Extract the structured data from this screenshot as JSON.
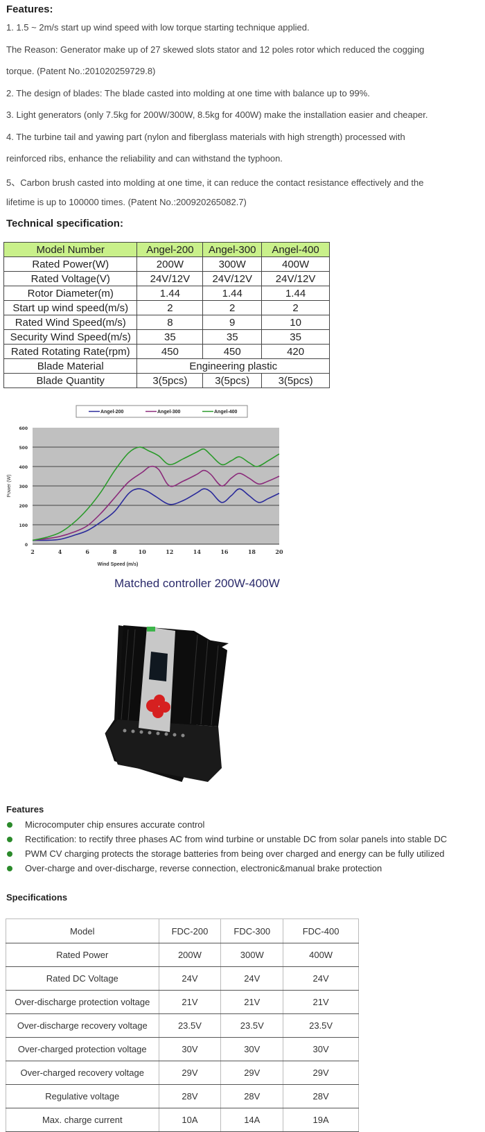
{
  "features": {
    "heading": "Features:",
    "lines": [
      "1. 1.5 ~ 2m/s start up wind speed with low torque starting technique applied.",
      "The Reason: Generator make up of 27 skewed slots stator and 12 poles rotor which reduced the cogging",
      "torque. (Patent No.:201020259729.8)",
      "2. The design of blades: The blade casted into molding at one time with balance up to 99%.",
      "3. Light generators (only 7.5kg for 200W/300W, 8.5kg for 400W) make the installation easier and cheaper.",
      "4.  The turbine tail and yawing part (nylon and fiberglass materials with high strength)      processed with",
      "reinforced ribs, enhance the reliability and can withstand the typhoon.",
      "5、Carbon brush casted into molding at one time, it can reduce the contact resistance effectively and the",
      "lifetime is up to 100000 times. (Patent No.:200920265082.7)"
    ]
  },
  "tech_spec": {
    "heading": "Technical specification:",
    "header": [
      "Model Number",
      "Angel-200",
      "Angel-300",
      "Angel-400"
    ],
    "rows": [
      [
        "Rated Power(W)",
        "200W",
        "300W",
        "400W"
      ],
      [
        "Rated Voltage(V)",
        "24V/12V",
        "24V/12V",
        "24V/12V"
      ],
      [
        "Rotor Diameter(m)",
        "1.44",
        "1.44",
        "1.44"
      ],
      [
        "Start up wind speed(m/s)",
        "2",
        "2",
        "2"
      ],
      [
        "Rated Wind Speed(m/s)",
        "8",
        "9",
        "10"
      ],
      [
        "Security Wind Speed(m/s)",
        "35",
        "35",
        "35"
      ],
      [
        "Rated Rotating Rate(rpm)",
        "450",
        "450",
        "420"
      ]
    ],
    "blade_material": {
      "label": "Blade Material",
      "value": "Engineering plastic"
    },
    "blade_quantity": [
      "Blade Quantity",
      "3(5pcs)",
      "3(5pcs)",
      "3(5pcs)"
    ],
    "header_color": "#c9f08a"
  },
  "chart_data": {
    "type": "line",
    "title": "",
    "xlabel": "Wind Speed (m/s)",
    "ylabel": "Power (W)",
    "xlim": [
      2,
      20
    ],
    "ylim": [
      0,
      600
    ],
    "xticks": [
      "2",
      "4",
      "6",
      "8",
      "10",
      "12",
      "14",
      "16",
      "18",
      "20"
    ],
    "yticks": [
      "0",
      "100",
      "200",
      "300",
      "400",
      "500",
      "600"
    ],
    "grid": true,
    "legend": "top",
    "plot_background": "#c0c0c0",
    "series": [
      {
        "name": "Angel-200",
        "color": "#2a2a9a",
        "x": [
          2,
          3,
          4,
          5,
          6,
          7,
          8,
          9,
          9.65,
          10.3,
          11,
          12,
          13,
          14,
          14.5,
          15,
          15.8,
          16.5,
          17.1,
          17.8,
          18.5,
          19.2,
          20
        ],
        "y": [
          20,
          20,
          25,
          45,
          70,
          115,
          170,
          260,
          285,
          275,
          245,
          205,
          225,
          265,
          285,
          270,
          215,
          250,
          285,
          250,
          215,
          235,
          262
        ]
      },
      {
        "name": "Angel-300",
        "color": "#8a2a7a",
        "x": [
          2,
          3,
          4,
          5,
          6,
          7,
          8,
          9,
          10,
          10.6,
          11.2,
          12,
          13,
          14,
          14.5,
          15,
          15.8,
          16.5,
          17.1,
          17.8,
          18.5,
          19.2,
          20
        ],
        "y": [
          20,
          28,
          40,
          62,
          95,
          160,
          240,
          320,
          370,
          400,
          385,
          300,
          325,
          360,
          380,
          360,
          300,
          340,
          365,
          340,
          310,
          325,
          350
        ]
      },
      {
        "name": "Angel-400",
        "color": "#2a9a2a",
        "x": [
          2,
          3,
          4,
          5,
          6,
          7,
          8,
          9,
          9.8,
          10.5,
          11.2,
          12,
          13,
          14,
          14.5,
          15,
          15.8,
          16.5,
          17.1,
          17.8,
          18.4,
          19.2,
          20
        ],
        "y": [
          20,
          35,
          60,
          110,
          180,
          270,
          380,
          470,
          500,
          480,
          455,
          410,
          440,
          475,
          490,
          460,
          410,
          430,
          450,
          420,
          400,
          430,
          465
        ]
      }
    ]
  },
  "controller": {
    "title": "Matched controller 200W-400W",
    "title_color": "#2a2a6a"
  },
  "controller_features": {
    "heading": "Features",
    "bullet_color": "#2b8a2b",
    "items": [
      "Microcomputer chip ensures accurate control",
      "Rectification: to rectify three phases AC from wind turbine or unstable DC from solar panels into stable DC",
      "PWM CV charging protects the storage batteries from being over charged and energy can be fully utilized",
      "Over-charge and over-discharge, reverse connection, electronic&manual brake protection"
    ]
  },
  "specifications": {
    "heading": "Specifications",
    "header": [
      "Model",
      "FDC-200",
      "FDC-300",
      "FDC-400"
    ],
    "rows": [
      [
        "Rated Power",
        "200W",
        "300W",
        "400W"
      ],
      [
        "Rated DC Voltage",
        "24V",
        "24V",
        "24V"
      ],
      [
        "Over-discharge protection voltage",
        "21V",
        "21V",
        "21V"
      ],
      [
        "Over-discharge recovery voltage",
        "23.5V",
        "23.5V",
        "23.5V"
      ],
      [
        "Over-charged protection voltage",
        "30V",
        "30V",
        "30V"
      ],
      [
        "Over-charged recovery voltage",
        "29V",
        "29V",
        "29V"
      ],
      [
        "Regulative voltage",
        "28V",
        "28V",
        "28V"
      ],
      [
        "Max. charge current",
        "10A",
        "14A",
        "19A"
      ]
    ]
  }
}
